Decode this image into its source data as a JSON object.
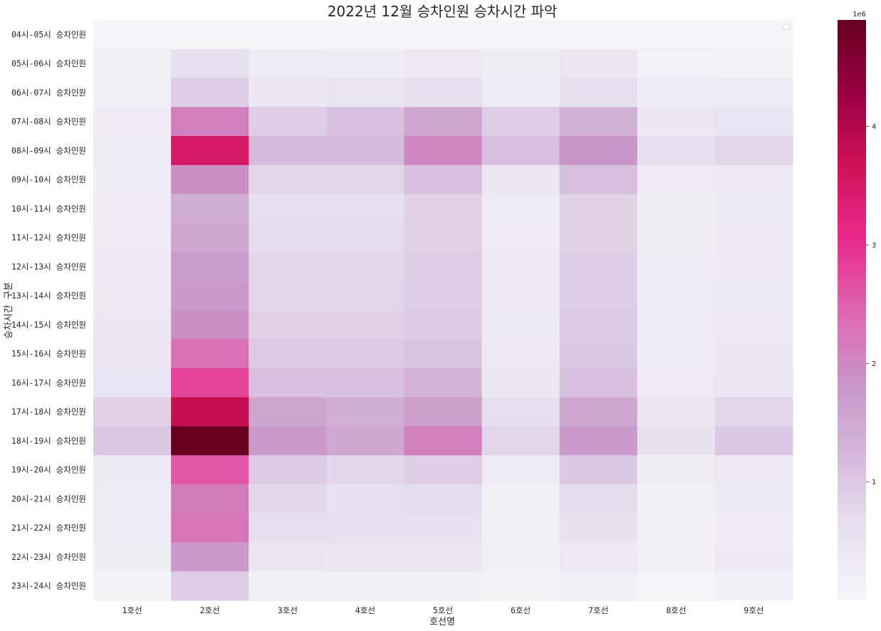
{
  "chart_data": {
    "type": "heatmap",
    "title": "2022년 12월 승차인원 승차시간 파악",
    "xlabel": "호선명",
    "ylabel": "승차시간 구분",
    "x": [
      "1호선",
      "2호선",
      "3호선",
      "4호선",
      "5호선",
      "6호선",
      "7호선",
      "8호선",
      "9호선"
    ],
    "y": [
      "04시-05시 승차인원",
      "05시-06시 승차인원",
      "06시-07시 승차인원",
      "07시-08시 승차인원",
      "08시-09시 승차인원",
      "09시-10시 승차인원",
      "10시-11시 승차인원",
      "11시-12시 승차인원",
      "12시-13시 승차인원",
      "13시-14시 승차인원",
      "14시-15시 승차인원",
      "15시-16시 승차인원",
      "16시-17시 승차인원",
      "17시-18시 승차인원",
      "18시-19시 승차인원",
      "19시-20시 승차인원",
      "20시-21시 승차인원",
      "21시-22시 승차인원",
      "22시-23시 승차인원",
      "23시-24시 승차인원"
    ],
    "values": [
      [
        1000,
        3000,
        2000,
        1500,
        3000,
        1000,
        2000,
        1000,
        1000
      ],
      [
        150000,
        600000,
        300000,
        250000,
        400000,
        220000,
        450000,
        120000,
        110000
      ],
      [
        150000,
        900000,
        420000,
        500000,
        650000,
        300000,
        650000,
        250000,
        300000
      ],
      [
        280000,
        2100000,
        900000,
        1100000,
        1550000,
        900000,
        1350000,
        420000,
        520000
      ],
      [
        300000,
        3500000,
        1200000,
        1200000,
        2000000,
        1150000,
        1800000,
        650000,
        800000
      ],
      [
        250000,
        1900000,
        750000,
        800000,
        1150000,
        450000,
        1150000,
        320000,
        400000
      ],
      [
        280000,
        1400000,
        650000,
        650000,
        850000,
        300000,
        850000,
        220000,
        330000
      ],
      [
        320000,
        1500000,
        700000,
        700000,
        850000,
        320000,
        850000,
        230000,
        340000
      ],
      [
        380000,
        1700000,
        750000,
        750000,
        900000,
        340000,
        900000,
        250000,
        360000
      ],
      [
        400000,
        1750000,
        800000,
        800000,
        900000,
        350000,
        900000,
        250000,
        370000
      ],
      [
        420000,
        1900000,
        850000,
        850000,
        950000,
        370000,
        950000,
        270000,
        400000
      ],
      [
        450000,
        2300000,
        950000,
        950000,
        1050000,
        400000,
        1000000,
        300000,
        420000
      ],
      [
        520000,
        2800000,
        1100000,
        1100000,
        1300000,
        450000,
        1100000,
        320000,
        450000
      ],
      [
        850000,
        3800000,
        1550000,
        1400000,
        1650000,
        650000,
        1500000,
        450000,
        800000
      ],
      [
        1000000,
        4900000,
        1750000,
        1500000,
        2100000,
        800000,
        1750000,
        550000,
        1000000
      ],
      [
        330000,
        2600000,
        950000,
        750000,
        900000,
        300000,
        1000000,
        220000,
        400000
      ],
      [
        300000,
        2150000,
        750000,
        600000,
        700000,
        200000,
        700000,
        180000,
        330000
      ],
      [
        300000,
        2250000,
        650000,
        600000,
        600000,
        200000,
        550000,
        170000,
        320000
      ],
      [
        240000,
        1750000,
        480000,
        450000,
        450000,
        170000,
        400000,
        150000,
        350000
      ],
      [
        100000,
        900000,
        200000,
        180000,
        180000,
        100000,
        200000,
        70000,
        160000
      ]
    ],
    "colorbar": {
      "multiplier_label": "1e6",
      "ticks": [
        "1",
        "2",
        "3",
        "4"
      ],
      "tick_values": [
        1,
        2,
        3,
        4
      ],
      "vmin": 0,
      "vmax": 4.9
    },
    "colormap": "PuRd",
    "grid": false,
    "legend": "top-right (empty)"
  }
}
